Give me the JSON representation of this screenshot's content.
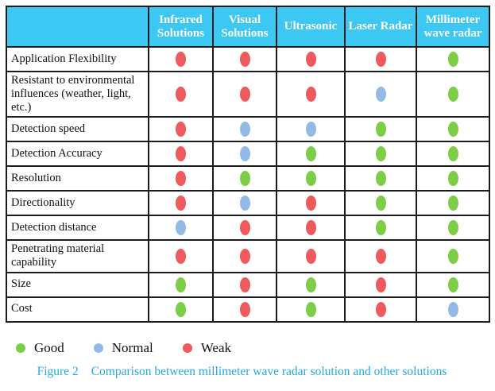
{
  "colors": {
    "good": "#7cce46",
    "normal": "#93bae7",
    "weak": "#ee5a5e",
    "header_bg": "#3dc8f3",
    "caption_text": "#29a6dc",
    "border": "#1c1c1c"
  },
  "table": {
    "columns": [
      "",
      "Infrared Solutions",
      "Visual Solutions",
      "Ultrasonic",
      "Laser Radar",
      "Millimeter wave radar"
    ],
    "rows": [
      {
        "label": "Application Flexibility",
        "values": [
          "weak",
          "weak",
          "weak",
          "weak",
          "good"
        ]
      },
      {
        "label": "Resistant to environmental influences (weather, light, etc.)",
        "values": [
          "weak",
          "weak",
          "weak",
          "normal",
          "good"
        ]
      },
      {
        "label": "Detection speed",
        "values": [
          "weak",
          "normal",
          "normal",
          "good",
          "good"
        ]
      },
      {
        "label": "Detection Accuracy",
        "values": [
          "weak",
          "normal",
          "good",
          "good",
          "good"
        ]
      },
      {
        "label": "Resolution",
        "values": [
          "weak",
          "good",
          "good",
          "good",
          "good"
        ]
      },
      {
        "label": "Directionality",
        "values": [
          "weak",
          "normal",
          "weak",
          "good",
          "good"
        ]
      },
      {
        "label": "Detection distance",
        "values": [
          "normal",
          "weak",
          "weak",
          "good",
          "good"
        ]
      },
      {
        "label": "Penetrating material capability",
        "values": [
          "weak",
          "weak",
          "weak",
          "weak",
          "good"
        ]
      },
      {
        "label": "Size",
        "values": [
          "good",
          "weak",
          "good",
          "weak",
          "good"
        ]
      },
      {
        "label": "Cost",
        "values": [
          "good",
          "weak",
          "good",
          "weak",
          "normal"
        ]
      }
    ]
  },
  "legend": [
    {
      "label": "Good",
      "status": "good"
    },
    {
      "label": "Normal",
      "status": "normal"
    },
    {
      "label": "Weak",
      "status": "weak"
    }
  ],
  "caption": {
    "prefix": "Figure 2",
    "text": "Comparison between millimeter wave radar solution and other solutions"
  }
}
